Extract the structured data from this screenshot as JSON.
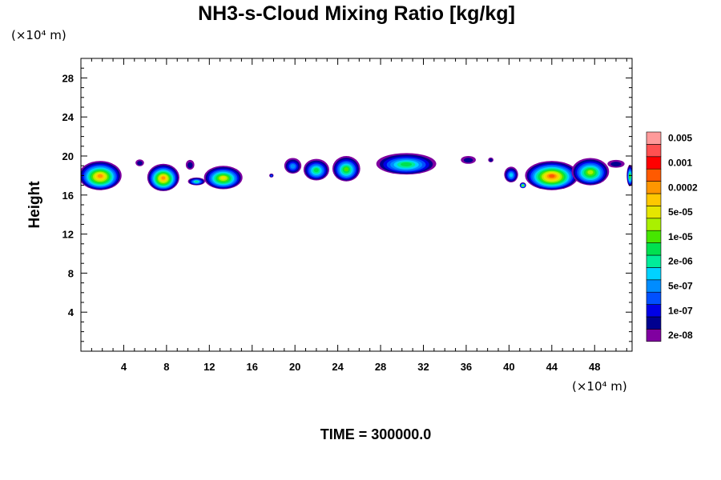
{
  "chart_data": {
    "type": "heatmap",
    "title": "NH3-s-Cloud Mixing Ratio [kg/kg]",
    "xlabel": "",
    "ylabel": "Height",
    "x_unit": "(×10⁴ m)",
    "y_unit": "(×10⁴ m)",
    "xlim": [
      0,
      51.5
    ],
    "ylim": [
      0,
      30
    ],
    "x_ticks": [
      "4",
      "8",
      "12",
      "16",
      "20",
      "24",
      "28",
      "32",
      "36",
      "40",
      "44",
      "48"
    ],
    "y_ticks": [
      "4",
      "8",
      "12",
      "16",
      "20",
      "24",
      "28"
    ],
    "footer": "TIME = 300000.0",
    "colorbar": {
      "colors": [
        "#8000a0",
        "#000090",
        "#0000e6",
        "#0050ff",
        "#008cff",
        "#00d2ff",
        "#00ec9a",
        "#00e050",
        "#46e600",
        "#aaf000",
        "#e6e600",
        "#ffc800",
        "#ff9600",
        "#ff5a00",
        "#ff0000",
        "#ff5050",
        "#ff9a9a"
      ],
      "labels": [
        "2e-08",
        "1e-07",
        "5e-07",
        "2e-06",
        "1e-05",
        "5e-05",
        "0.0002",
        "0.001",
        "0.005"
      ]
    },
    "cloud_cells": [
      {
        "x": 1.8,
        "y": 18.0,
        "w": 4.0,
        "h": 3.0,
        "level": 12
      },
      {
        "x": 5.5,
        "y": 19.3,
        "w": 0.8,
        "h": 0.7,
        "level": 1
      },
      {
        "x": 7.7,
        "y": 17.8,
        "w": 3.0,
        "h": 2.8,
        "level": 12
      },
      {
        "x": 10.2,
        "y": 19.1,
        "w": 0.8,
        "h": 1.0,
        "level": 1
      },
      {
        "x": 10.8,
        "y": 17.4,
        "w": 1.6,
        "h": 0.8,
        "level": 6
      },
      {
        "x": 13.3,
        "y": 17.8,
        "w": 3.6,
        "h": 2.4,
        "level": 10
      },
      {
        "x": 17.8,
        "y": 18.0,
        "w": 0.4,
        "h": 0.4,
        "level": 3
      },
      {
        "x": 19.8,
        "y": 19.0,
        "w": 1.6,
        "h": 1.6,
        "level": 4
      },
      {
        "x": 22.0,
        "y": 18.6,
        "w": 2.4,
        "h": 2.2,
        "level": 7
      },
      {
        "x": 24.8,
        "y": 18.7,
        "w": 2.6,
        "h": 2.6,
        "level": 8
      },
      {
        "x": 30.4,
        "y": 19.2,
        "w": 5.6,
        "h": 2.2,
        "level": 7
      },
      {
        "x": 36.2,
        "y": 19.6,
        "w": 1.4,
        "h": 0.8,
        "level": 1
      },
      {
        "x": 38.3,
        "y": 19.6,
        "w": 0.5,
        "h": 0.5,
        "level": 1
      },
      {
        "x": 40.2,
        "y": 18.1,
        "w": 1.3,
        "h": 1.6,
        "level": 5
      },
      {
        "x": 41.3,
        "y": 17.0,
        "w": 0.6,
        "h": 0.6,
        "level": 9
      },
      {
        "x": 44.0,
        "y": 18.0,
        "w": 5.0,
        "h": 3.0,
        "level": 13
      },
      {
        "x": 47.6,
        "y": 18.4,
        "w": 3.5,
        "h": 2.8,
        "level": 9
      },
      {
        "x": 50.0,
        "y": 19.2,
        "w": 1.6,
        "h": 0.8,
        "level": 1
      },
      {
        "x": 51.3,
        "y": 18.0,
        "w": 0.6,
        "h": 2.2,
        "level": 8
      }
    ]
  }
}
